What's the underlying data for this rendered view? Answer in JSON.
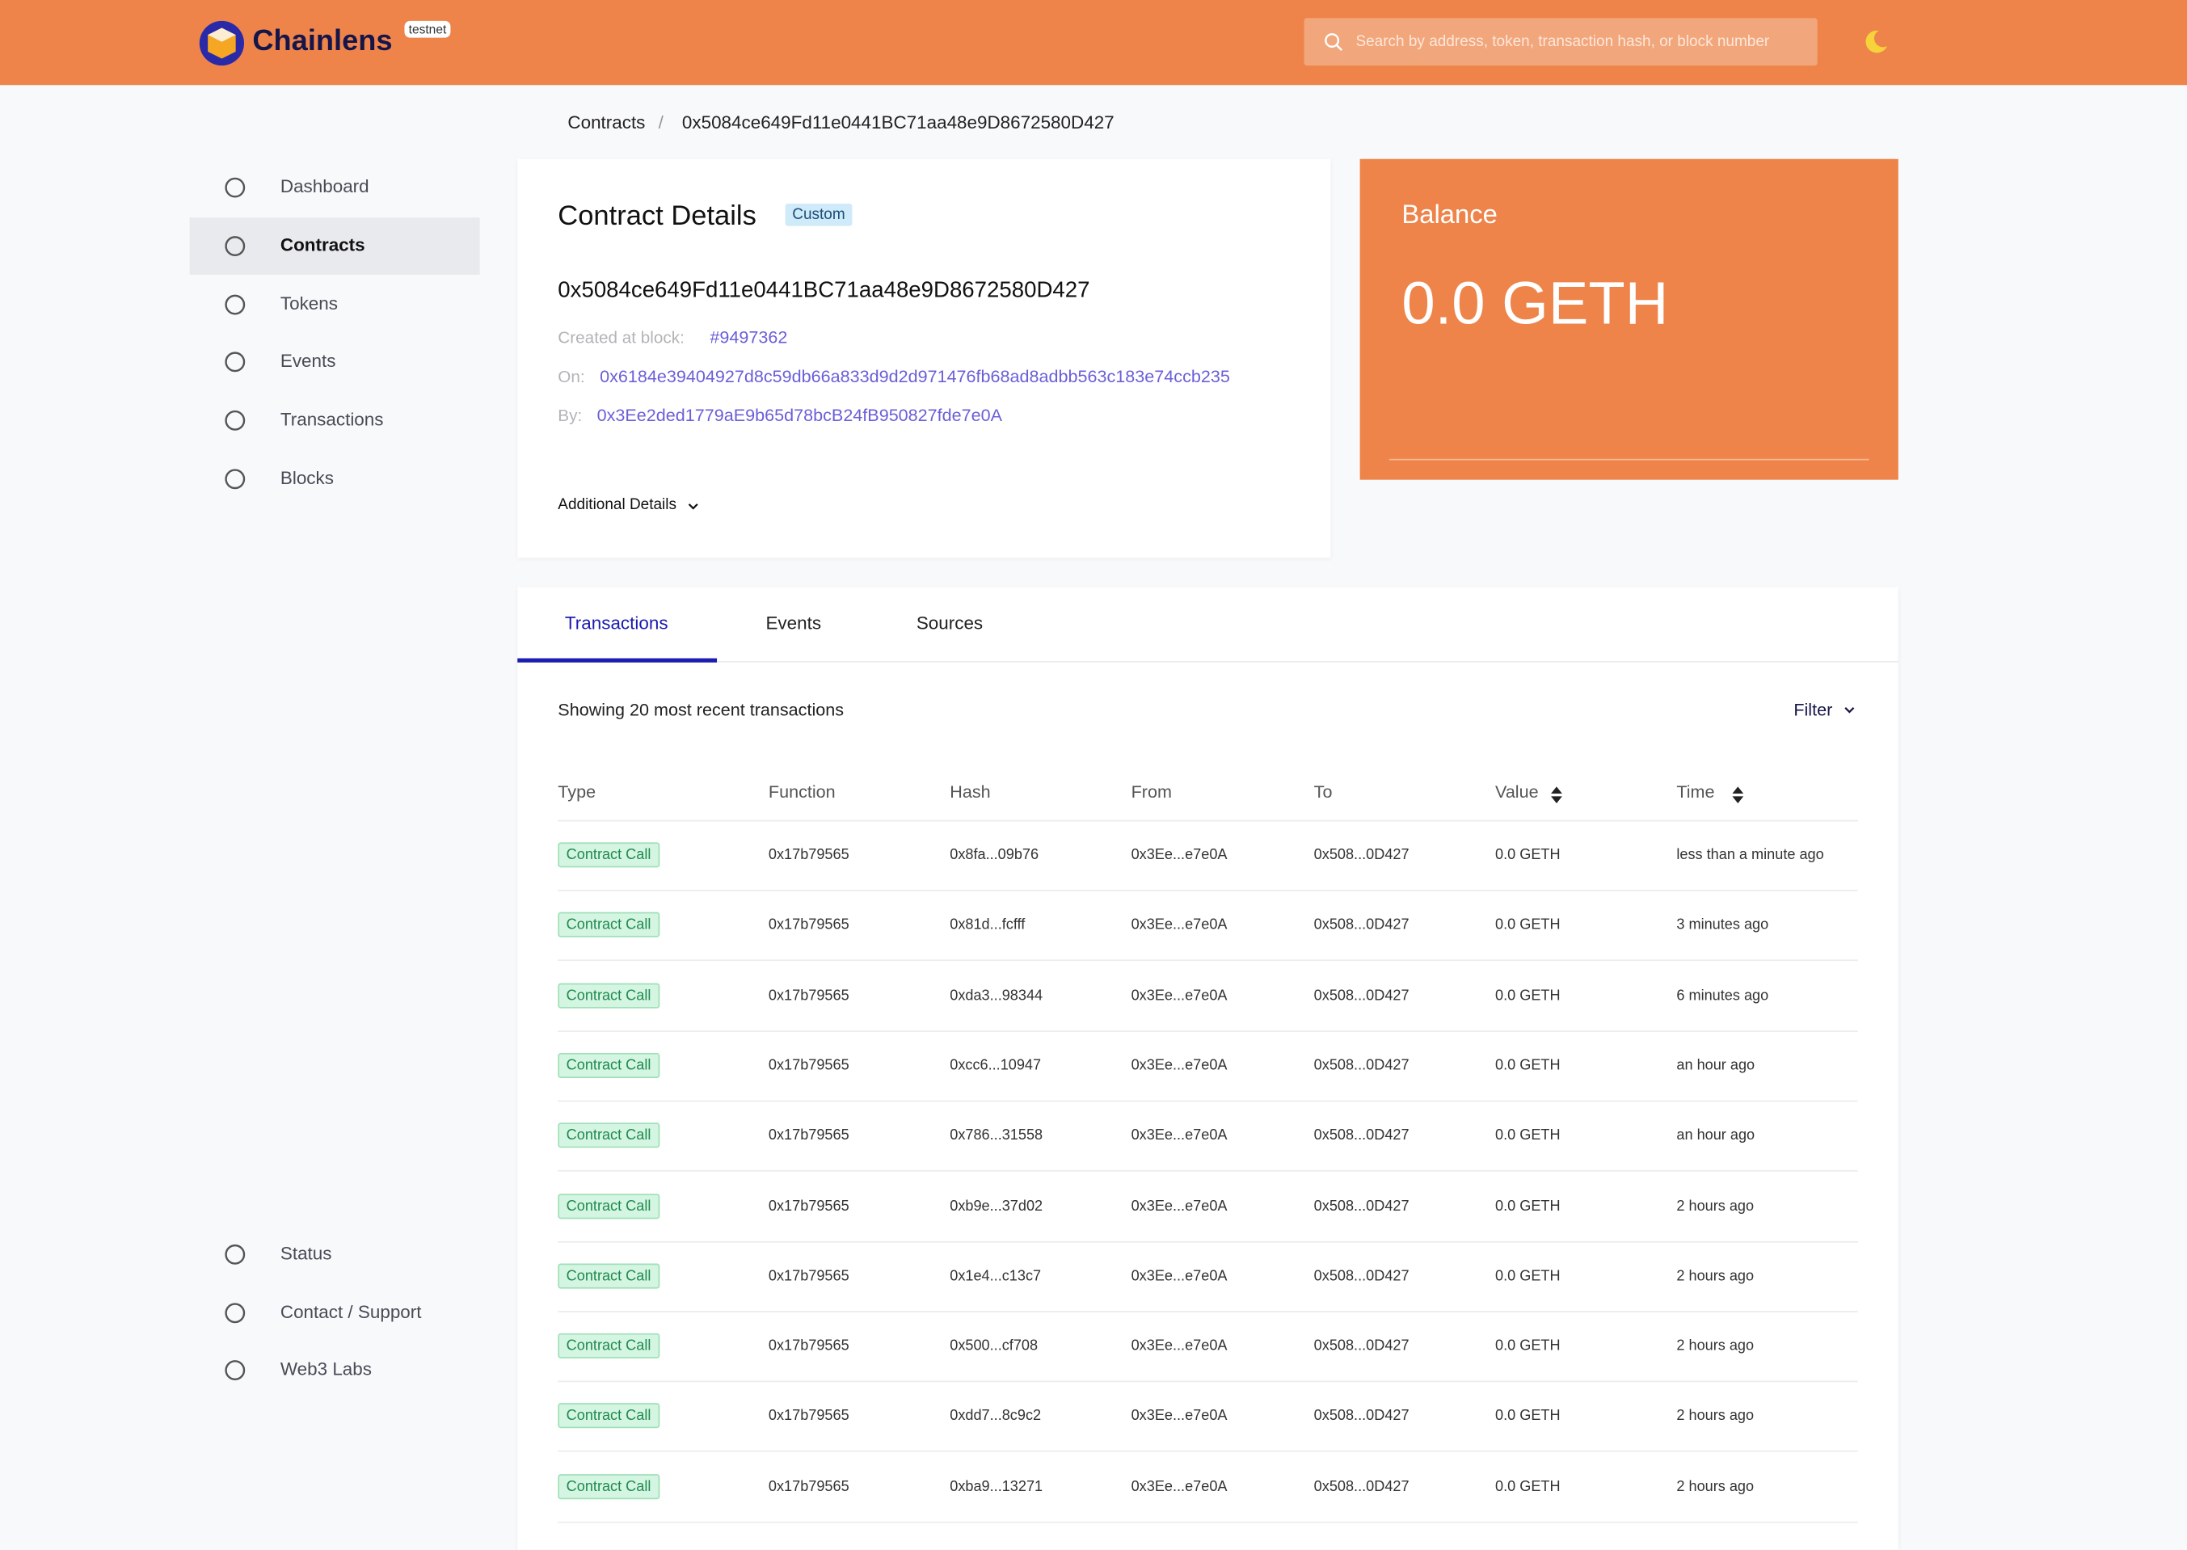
{
  "header": {
    "brand": "Chainlens",
    "network": "testnet",
    "search_placeholder": "Search by address, token, transaction hash, or block number"
  },
  "breadcrumb": [
    "Contracts",
    "0x5084ce649Fd11e0441BC71aa48e9D8672580D427"
  ],
  "sidebar": {
    "main": [
      "Dashboard",
      "Contracts",
      "Tokens",
      "Events",
      "Transactions",
      "Blocks"
    ],
    "active": "Contracts",
    "footer": [
      "Status",
      "Contact / Support",
      "Web3 Labs"
    ]
  },
  "contract": {
    "title": "Contract Details",
    "badge": "Custom",
    "address": "0x5084ce649Fd11e0441BC71aa48e9D8672580D427",
    "created_label": "Created at block:",
    "created_value": "#9497362",
    "on_label": "On:",
    "on_value": "0x6184e39404927d8c59db66a833d9d2d971476fb68ad8adbb563c183e74ccb235",
    "by_label": "By:",
    "by_value": "0x3Ee2ded1779aE9b65d78bcB24fB950827fde7e0A",
    "additional": "Additional Details"
  },
  "balance": {
    "label": "Balance",
    "value": "0.0 GETH"
  },
  "tabs": [
    "Transactions",
    "Events",
    "Sources"
  ],
  "table": {
    "caption": "Showing 20 most recent transactions",
    "filter": "Filter",
    "columns": [
      "Type",
      "Function",
      "Hash",
      "From",
      "To",
      "Value",
      "Time"
    ],
    "rows": [
      [
        "Contract Call",
        "0x17b79565",
        "0x8fa...09b76",
        "0x3Ee...e7e0A",
        "0x508...0D427",
        "0.0 GETH",
        "less than a minute ago"
      ],
      [
        "Contract Call",
        "0x17b79565",
        "0x81d...fcfff",
        "0x3Ee...e7e0A",
        "0x508...0D427",
        "0.0 GETH",
        "3 minutes ago"
      ],
      [
        "Contract Call",
        "0x17b79565",
        "0xda3...98344",
        "0x3Ee...e7e0A",
        "0x508...0D427",
        "0.0 GETH",
        "6 minutes ago"
      ],
      [
        "Contract Call",
        "0x17b79565",
        "0xcc6...10947",
        "0x3Ee...e7e0A",
        "0x508...0D427",
        "0.0 GETH",
        "an hour ago"
      ],
      [
        "Contract Call",
        "0x17b79565",
        "0x786...31558",
        "0x3Ee...e7e0A",
        "0x508...0D427",
        "0.0 GETH",
        "an hour ago"
      ],
      [
        "Contract Call",
        "0x17b79565",
        "0xb9e...37d02",
        "0x3Ee...e7e0A",
        "0x508...0D427",
        "0.0 GETH",
        "2 hours ago"
      ],
      [
        "Contract Call",
        "0x17b79565",
        "0x1e4...c13c7",
        "0x3Ee...e7e0A",
        "0x508...0D427",
        "0.0 GETH",
        "2 hours ago"
      ],
      [
        "Contract Call",
        "0x17b79565",
        "0x500...cf708",
        "0x3Ee...e7e0A",
        "0x508...0D427",
        "0.0 GETH",
        "2 hours ago"
      ],
      [
        "Contract Call",
        "0x17b79565",
        "0xdd7...8c9c2",
        "0x3Ee...e7e0A",
        "0x508...0D427",
        "0.0 GETH",
        "2 hours ago"
      ],
      [
        "Contract Call",
        "0x17b79565",
        "0xba9...13271",
        "0x3Ee...e7e0A",
        "0x508...0D427",
        "0.0 GETH",
        "2 hours ago"
      ]
    ]
  }
}
